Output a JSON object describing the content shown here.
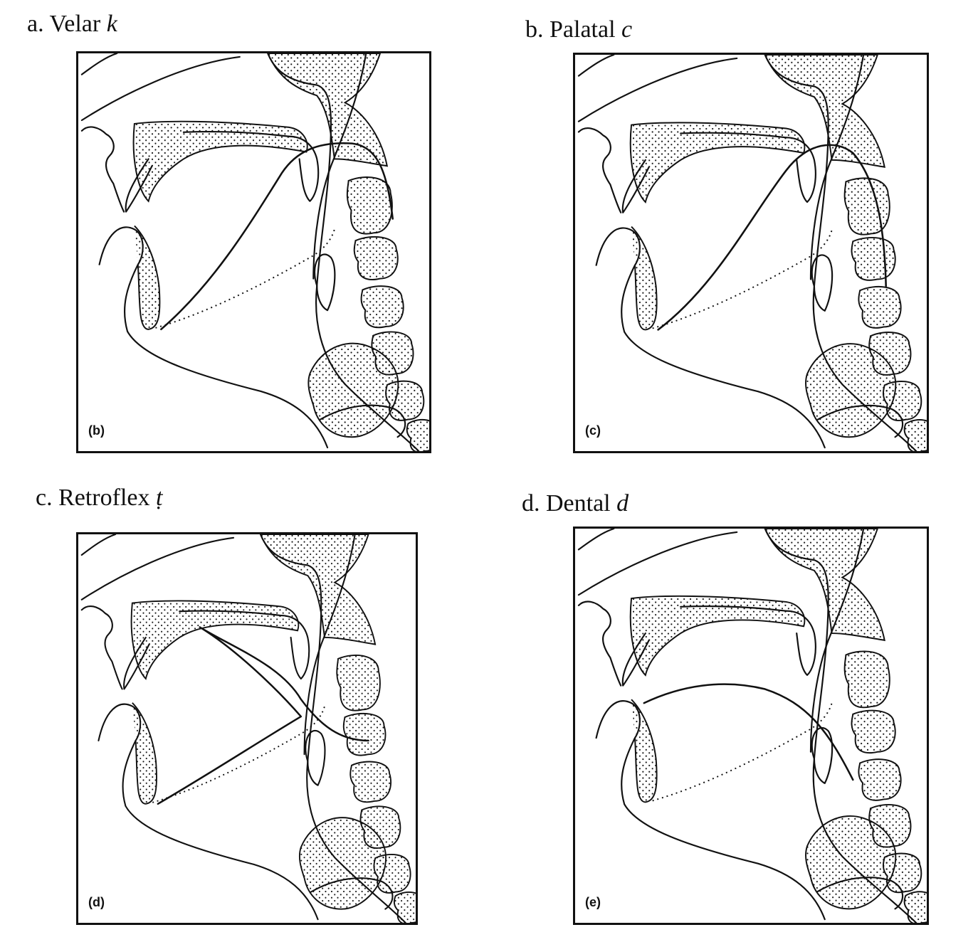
{
  "panels": [
    {
      "letter": "a.",
      "label": "Velar",
      "symbol": "k",
      "sub": "(b)",
      "tongue": "velar"
    },
    {
      "letter": "b.",
      "label": "Palatal",
      "symbol": "c",
      "sub": "(c)",
      "tongue": "palatal"
    },
    {
      "letter": "c.",
      "label": "Retroflex",
      "symbol": "ṭ",
      "sub": "(d)",
      "tongue": "retroflex"
    },
    {
      "letter": "d.",
      "label": "Dental",
      "symbol": "d",
      "sub": "(e)",
      "tongue": "dental"
    }
  ],
  "colors": {
    "ink": "#111111",
    "paper": "#ffffff"
  }
}
